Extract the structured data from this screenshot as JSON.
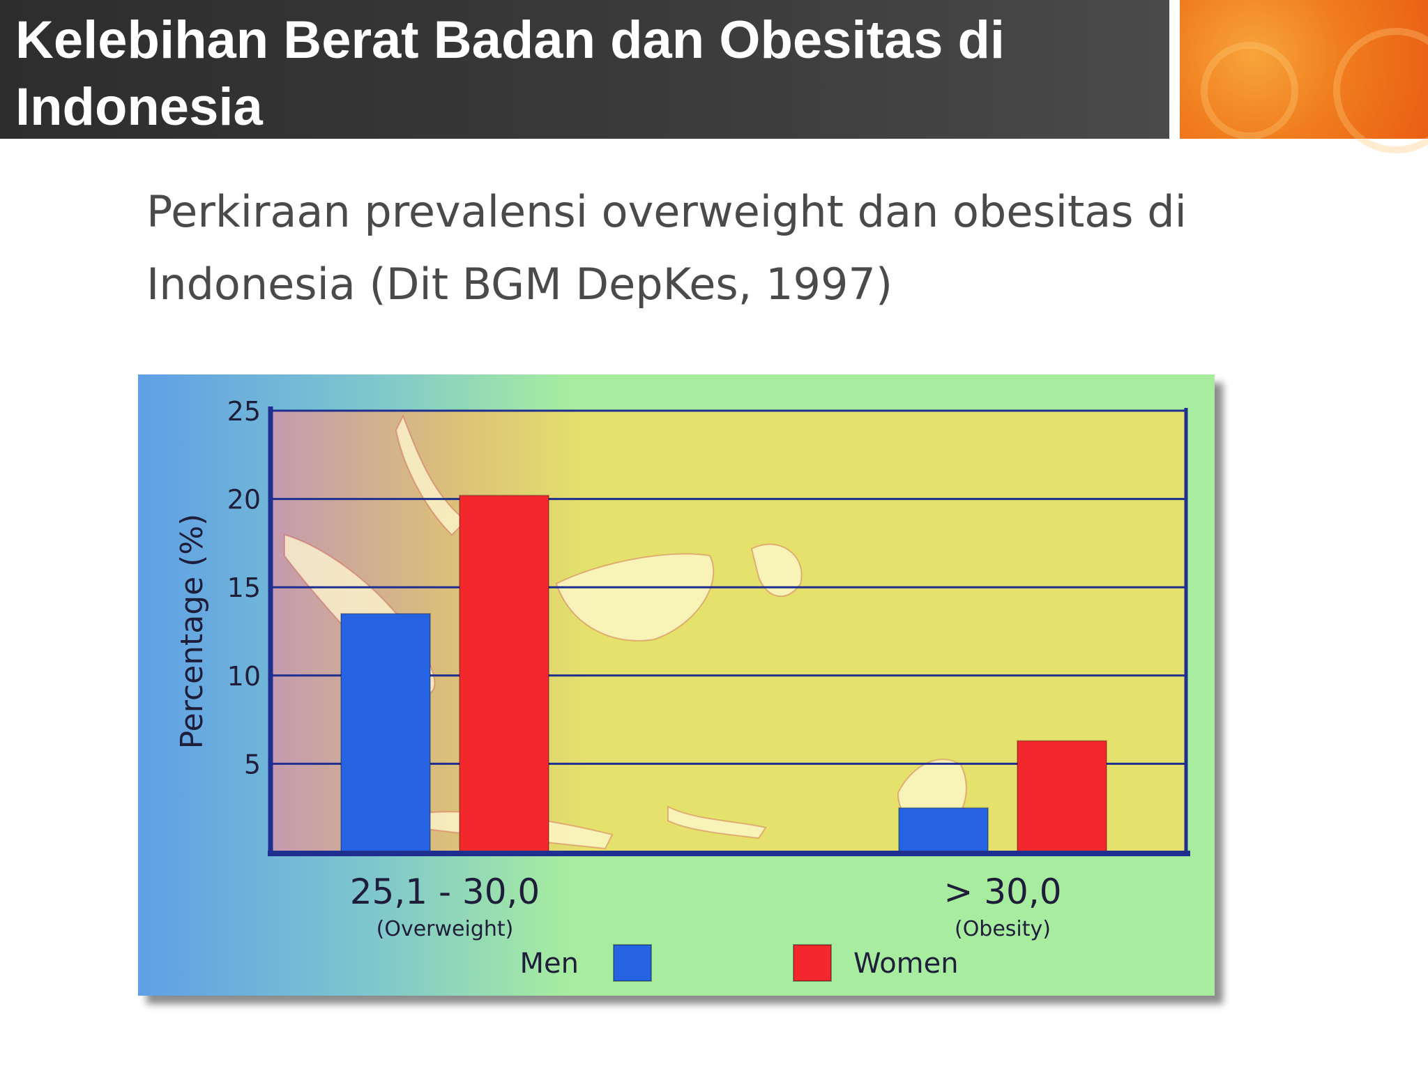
{
  "slide": {
    "title": "Kelebihan Berat Badan dan Obesitas di Indonesia",
    "subtitle": "Perkiraan prevalensi overweight dan obesitas di Indonesia (Dit BGM DepKes, 1997)"
  },
  "colors": {
    "men": "#2663e2",
    "women": "#f2282c",
    "axis": "#1f2f8f",
    "plot_bg": "#e4e26c",
    "header_bg": "#333333",
    "accent": "#f07d1e"
  },
  "chart_data": {
    "type": "bar",
    "categories": [
      "25,1 - 30,0",
      "> 30,0"
    ],
    "category_sublabels": [
      "(Overweight)",
      "(Obesity)"
    ],
    "series": [
      {
        "name": "Men",
        "values": [
          13.5,
          2.5
        ]
      },
      {
        "name": "Women",
        "values": [
          20.2,
          6.3
        ]
      }
    ],
    "title": "",
    "xlabel": "",
    "ylabel": "Percentage (%)",
    "ylim": [
      0,
      25
    ],
    "yticks": [
      5,
      10,
      15,
      20,
      25
    ],
    "grid": true,
    "legend": "bottom"
  }
}
